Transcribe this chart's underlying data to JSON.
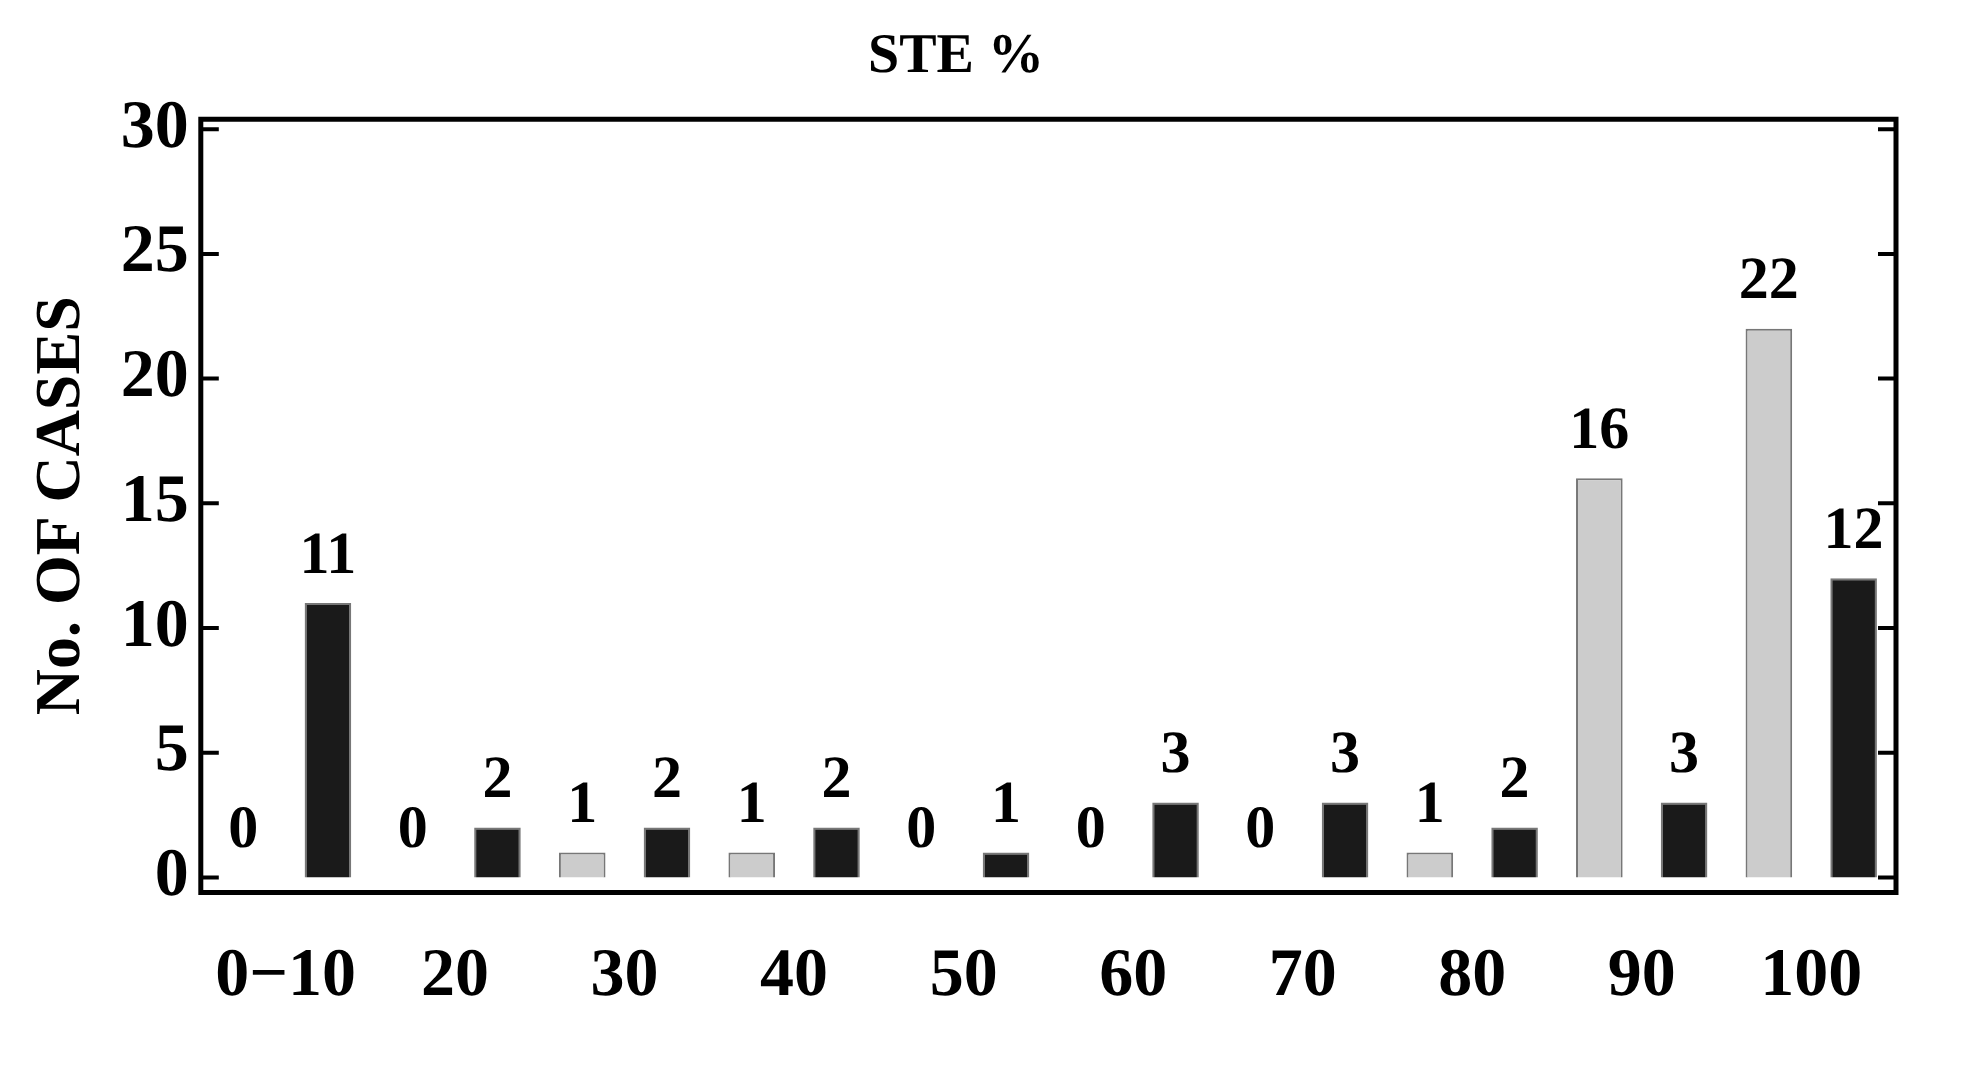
{
  "chart_data": {
    "type": "bar",
    "title": "STE %",
    "ylabel": "No. OF CASES",
    "categories": [
      "0−10",
      "20",
      "30",
      "40",
      "50",
      "60",
      "70",
      "80",
      "90",
      "100"
    ],
    "series": [
      {
        "color": "#cccccc",
        "values": [
          0,
          0,
          1,
          1,
          0,
          0,
          0,
          1,
          16,
          22
        ]
      },
      {
        "color": "#1a1a1a",
        "values": [
          11,
          2,
          2,
          2,
          1,
          3,
          3,
          2,
          3,
          12
        ]
      }
    ],
    "ylim": [
      -0.6,
      30.4
    ],
    "yticks": [
      0,
      5,
      10,
      15,
      20,
      25,
      30
    ],
    "grid": false,
    "data_labels": true
  }
}
